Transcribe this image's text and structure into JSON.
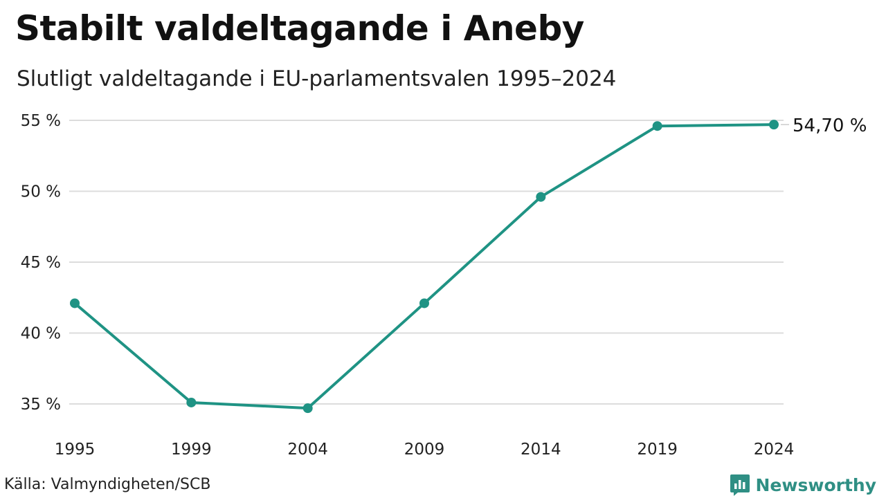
{
  "title": "Stabilt valdeltagande i Aneby",
  "subtitle": "Slutligt valdeltagande i EU-parlamentsvalen 1995–2024",
  "source": "Källa: Valmyndigheten/SCB",
  "brand": {
    "name": "Newsworthy",
    "icon": "newsworthy-logo-icon",
    "color": "#2f8f84"
  },
  "chart_data": {
    "type": "line",
    "x": [
      "1995",
      "1999",
      "2004",
      "2009",
      "2014",
      "2019",
      "2024"
    ],
    "series": [
      {
        "values": [
          42.1,
          35.1,
          34.7,
          42.1,
          49.6,
          54.6,
          54.7
        ],
        "color": "#1f9384"
      }
    ],
    "y_ticks": [
      "35 %",
      "40 %",
      "45 %",
      "50 %",
      "55 %"
    ],
    "ylim": [
      35,
      55
    ],
    "end_label": "54,70 %",
    "grid": true,
    "xlabel": "",
    "ylabel": ""
  }
}
